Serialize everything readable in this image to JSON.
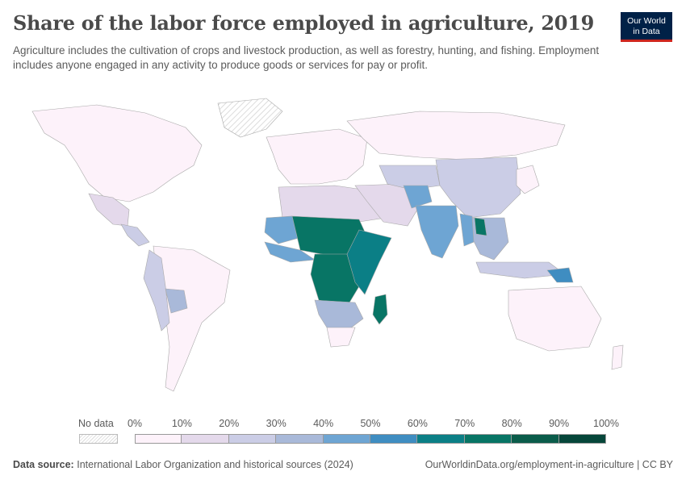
{
  "title": "Share of the labor force employed in agriculture, 2019",
  "subtitle": "Agriculture includes the cultivation of crops and livestock production, as well as forestry, hunting, and fishing. Employment includes anyone engaged in any activity to produce goods or services for pay or profit.",
  "logo": {
    "line1": "Our World",
    "line2": "in Data"
  },
  "legend": {
    "no_data_label": "No data",
    "ticks": [
      "0%",
      "10%",
      "20%",
      "30%",
      "40%",
      "50%",
      "60%",
      "70%",
      "80%",
      "90%",
      "100%"
    ],
    "colors": [
      "#fdf2fa",
      "#e4d9eb",
      "#cbcde6",
      "#a9b9d9",
      "#6ea5d3",
      "#3f8dc1",
      "#0b7f86",
      "#087565",
      "#0a5c4a",
      "#06463a"
    ]
  },
  "footer": {
    "source_label": "Data source:",
    "source_text": "International Labor Organization and historical sources (2024)",
    "right_text": "OurWorldinData.org/employment-in-agriculture | CC BY"
  },
  "map_data": {
    "regions": [
      {
        "name": "North America",
        "share_pct": 2,
        "color": "#fdf2fa"
      },
      {
        "name": "Greenland",
        "share_pct": null,
        "color": "nodata"
      },
      {
        "name": "Mexico",
        "share_pct": 13,
        "color": "#e4d9eb"
      },
      {
        "name": "Central America",
        "share_pct": 28,
        "color": "#cbcde6"
      },
      {
        "name": "South America (south/east)",
        "share_pct": 8,
        "color": "#fdf2fa"
      },
      {
        "name": "Andean countries",
        "share_pct": 25,
        "color": "#cbcde6"
      },
      {
        "name": "Bolivia",
        "share_pct": 32,
        "color": "#a9b9d9"
      },
      {
        "name": "Europe",
        "share_pct": 4,
        "color": "#fdf2fa"
      },
      {
        "name": "Russia",
        "share_pct": 6,
        "color": "#fdf2fa"
      },
      {
        "name": "North Africa",
        "share_pct": 15,
        "color": "#e4d9eb"
      },
      {
        "name": "Sahel West",
        "share_pct": 40,
        "color": "#6ea5d3"
      },
      {
        "name": "Sahel Central",
        "share_pct": 75,
        "color": "#087565"
      },
      {
        "name": "West Africa coast",
        "share_pct": 45,
        "color": "#6ea5d3"
      },
      {
        "name": "Central Africa",
        "share_pct": 70,
        "color": "#087565"
      },
      {
        "name": "East Africa",
        "share_pct": 65,
        "color": "#0b7f86"
      },
      {
        "name": "Southern Africa",
        "share_pct": 35,
        "color": "#a9b9d9"
      },
      {
        "name": "South Africa",
        "share_pct": 5,
        "color": "#fdf2fa"
      },
      {
        "name": "Madagascar",
        "share_pct": 75,
        "color": "#087565"
      },
      {
        "name": "Middle East",
        "share_pct": 12,
        "color": "#e4d9eb"
      },
      {
        "name": "Central Asia",
        "share_pct": 25,
        "color": "#cbcde6"
      },
      {
        "name": "Afghanistan",
        "share_pct": 45,
        "color": "#6ea5d3"
      },
      {
        "name": "India",
        "share_pct": 43,
        "color": "#6ea5d3"
      },
      {
        "name": "China",
        "share_pct": 25,
        "color": "#cbcde6"
      },
      {
        "name": "Southeast Asia",
        "share_pct": 35,
        "color": "#a9b9d9"
      },
      {
        "name": "Myanmar",
        "share_pct": 48,
        "color": "#6ea5d3"
      },
      {
        "name": "Laos",
        "share_pct": 70,
        "color": "#087565"
      },
      {
        "name": "Japan/Korea",
        "share_pct": 4,
        "color": "#fdf2fa"
      },
      {
        "name": "Indonesia",
        "share_pct": 28,
        "color": "#cbcde6"
      },
      {
        "name": "Papua New Guinea",
        "share_pct": 57,
        "color": "#3f8dc1"
      },
      {
        "name": "Australia",
        "share_pct": 3,
        "color": "#fdf2fa"
      },
      {
        "name": "New Zealand",
        "share_pct": 6,
        "color": "#fdf2fa"
      }
    ]
  }
}
